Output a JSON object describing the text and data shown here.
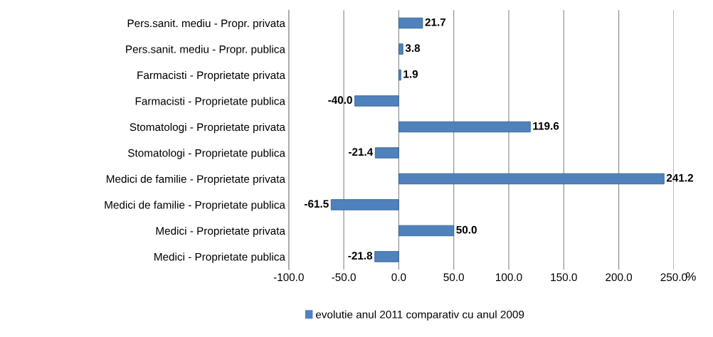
{
  "chart_data": {
    "type": "bar",
    "orientation": "horizontal",
    "xlabel": "%",
    "categories": [
      "Pers.sanit. mediu - Propr. privata",
      "Pers.sanit. mediu - Propr. publica",
      "Farmacisti - Proprietate privata",
      "Farmacisti - Proprietate publica",
      "Stomatologi - Proprietate privata",
      "Stomatologi - Proprietate publica",
      "Medici de familie - Proprietate privata",
      "Medici de familie - Proprietate publica",
      "Medici - Proprietate privata",
      "Medici - Proprietate publica"
    ],
    "series": [
      {
        "name": "evolutie anul 2011 comparativ cu anul 2009",
        "color": "#4f81bd",
        "values": [
          21.7,
          3.8,
          1.9,
          -40.0,
          119.6,
          -21.4,
          241.2,
          -61.5,
          50.0,
          -21.8
        ]
      }
    ],
    "value_labels": [
      "21.7",
      "3.8",
      "1.9",
      "-40.0",
      "119.6",
      "-21.4",
      "241.2",
      "-61.5",
      "50.0",
      "-21.8"
    ],
    "xlim": [
      -100,
      250
    ],
    "xticks": [
      {
        "value": -100,
        "label": "-100.0"
      },
      {
        "value": -50,
        "label": "-50.0"
      },
      {
        "value": 0,
        "label": "0.0"
      },
      {
        "value": 50,
        "label": "50.0"
      },
      {
        "value": 100,
        "label": "100.0"
      },
      {
        "value": 150,
        "label": "150.0"
      },
      {
        "value": 200,
        "label": "200.0"
      },
      {
        "value": 250,
        "label": "250.0"
      }
    ],
    "grid": "x",
    "legend": "bottom"
  }
}
